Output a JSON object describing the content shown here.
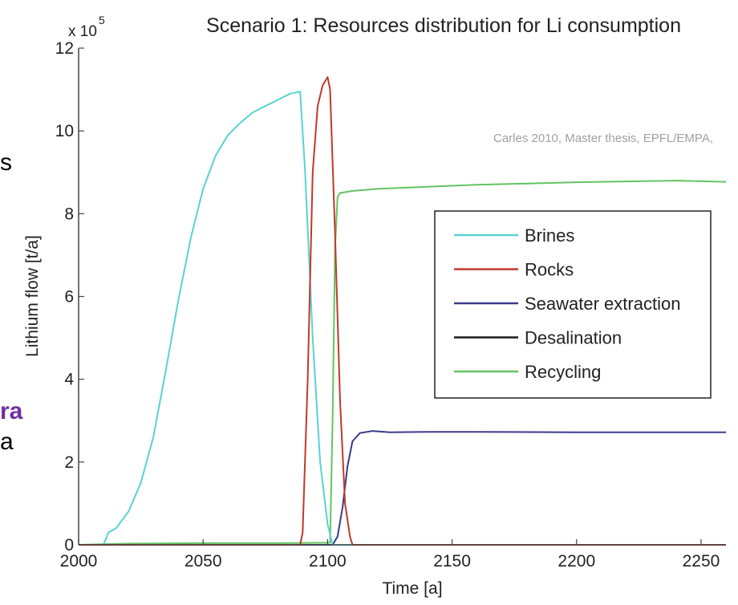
{
  "background_fragments": [
    {
      "text": "s",
      "color": "#000000",
      "bold": false
    },
    {
      "text": "ra",
      "color": "#7030a0",
      "bold": true
    },
    {
      "text": "a",
      "color": "#000000",
      "bold": false
    }
  ],
  "chart_data": {
    "type": "line",
    "title": "Scenario 1: Resources distribution for Li consumption",
    "xlabel": "Time [a]",
    "ylabel": "Lithium flow [t/a]",
    "y_scale_label": "x 10",
    "y_scale_exponent": "5",
    "xlim": [
      2000,
      2260
    ],
    "ylim": [
      0,
      12
    ],
    "xticks": [
      2000,
      2050,
      2100,
      2150,
      2200,
      2250
    ],
    "yticks": [
      0,
      2,
      4,
      6,
      8,
      10,
      12
    ],
    "grid": false,
    "legend_position": "right",
    "annotation": "Carles 2010, Master thesis, EPFL/EMPA,",
    "series": [
      {
        "name": "Brines",
        "color": "#5ad2d2",
        "x": [
          2000,
          2010,
          2012,
          2015,
          2020,
          2025,
          2030,
          2035,
          2040,
          2045,
          2050,
          2055,
          2060,
          2065,
          2070,
          2075,
          2080,
          2085,
          2089,
          2091,
          2094,
          2097,
          2100,
          2102,
          2260
        ],
        "y": [
          0,
          0,
          0.3,
          0.4,
          0.8,
          1.5,
          2.6,
          4.2,
          5.9,
          7.4,
          8.6,
          9.4,
          9.9,
          10.2,
          10.45,
          10.6,
          10.75,
          10.9,
          10.95,
          9.0,
          5.0,
          2.0,
          0.5,
          0,
          0
        ]
      },
      {
        "name": "Rocks",
        "color": "#c0392b",
        "x": [
          2000,
          2089,
          2090,
          2092,
          2094,
          2096,
          2098,
          2100,
          2101,
          2103,
          2105,
          2107,
          2109,
          2110,
          2260
        ],
        "y": [
          0,
          0,
          0.3,
          4.0,
          9.0,
          10.6,
          11.1,
          11.3,
          11.0,
          7.5,
          3.5,
          1.0,
          0.2,
          0,
          0
        ]
      },
      {
        "name": "Seawater extraction",
        "color": "#3a3a8c",
        "x": [
          2000,
          2102,
          2104,
          2106,
          2108,
          2110,
          2113,
          2118,
          2125,
          2140,
          2160,
          2200,
          2260
        ],
        "y": [
          0,
          0,
          0.2,
          0.9,
          1.9,
          2.5,
          2.7,
          2.75,
          2.72,
          2.73,
          2.73,
          2.72,
          2.72
        ]
      },
      {
        "name": "Desalination",
        "color": "#1a1a1a",
        "x": [
          2000,
          2260
        ],
        "y": [
          0,
          0
        ]
      },
      {
        "name": "Recycling",
        "color": "#62c462",
        "x": [
          2000,
          2020,
          2050,
          2080,
          2101,
          2102,
          2103,
          2104,
          2105,
          2110,
          2120,
          2140,
          2160,
          2180,
          2200,
          2220,
          2240,
          2260
        ],
        "y": [
          0,
          0.03,
          0.04,
          0.04,
          0.05,
          3.0,
          7.2,
          8.4,
          8.5,
          8.55,
          8.6,
          8.65,
          8.7,
          8.73,
          8.76,
          8.78,
          8.8,
          8.77
        ]
      }
    ]
  }
}
